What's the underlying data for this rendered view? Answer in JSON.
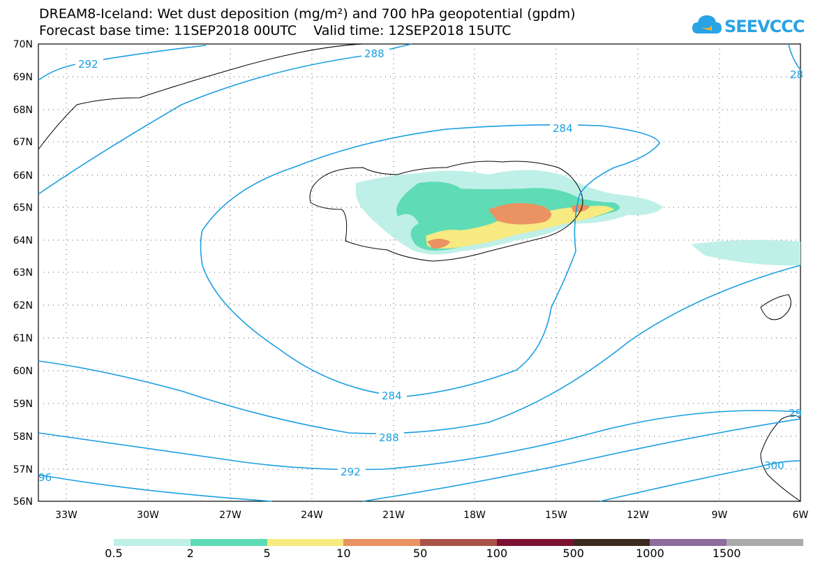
{
  "title": {
    "line1": "DREAM8-Iceland: Wet dust deposition (mg/m²) and 700 hPa geopotential (gpdm)",
    "line2": "Forecast base time: 11SEP2018 00UTC    Valid time: 12SEP2018 15UTC"
  },
  "logo": {
    "name": "cloud-icon",
    "text": "SEEVCCC"
  },
  "axes": {
    "lat_labels": [
      "70N",
      "69N",
      "68N",
      "67N",
      "66N",
      "65N",
      "64N",
      "63N",
      "62N",
      "61N",
      "60N",
      "59N",
      "58N",
      "57N",
      "56N"
    ],
    "lon_labels": [
      "33W",
      "30W",
      "27W",
      "24W",
      "21W",
      "18W",
      "15W",
      "12W",
      "9W",
      "6W"
    ]
  },
  "contours": [
    {
      "label": "292",
      "label2": "292"
    },
    {
      "label": "288",
      "label2": "288"
    },
    {
      "label": "284",
      "label2": "284"
    },
    {
      "label": "28"
    },
    {
      "label": "96"
    },
    {
      "label": "29"
    },
    {
      "label": "300"
    }
  ],
  "legend": {
    "colors": [
      "#bff0e8",
      "#5fdcb5",
      "#f7ea80",
      "#ea9262",
      "#a9544a",
      "#7c1030",
      "#3a2b1e",
      "#8f6b9e",
      "#aaaaaa"
    ],
    "labels": [
      "0.5",
      "2",
      "5",
      "10",
      "50",
      "100",
      "500",
      "1000",
      "1500"
    ]
  },
  "colors": {
    "contour": "#1a9fe0",
    "land": "#000000",
    "grid": "#333333"
  }
}
